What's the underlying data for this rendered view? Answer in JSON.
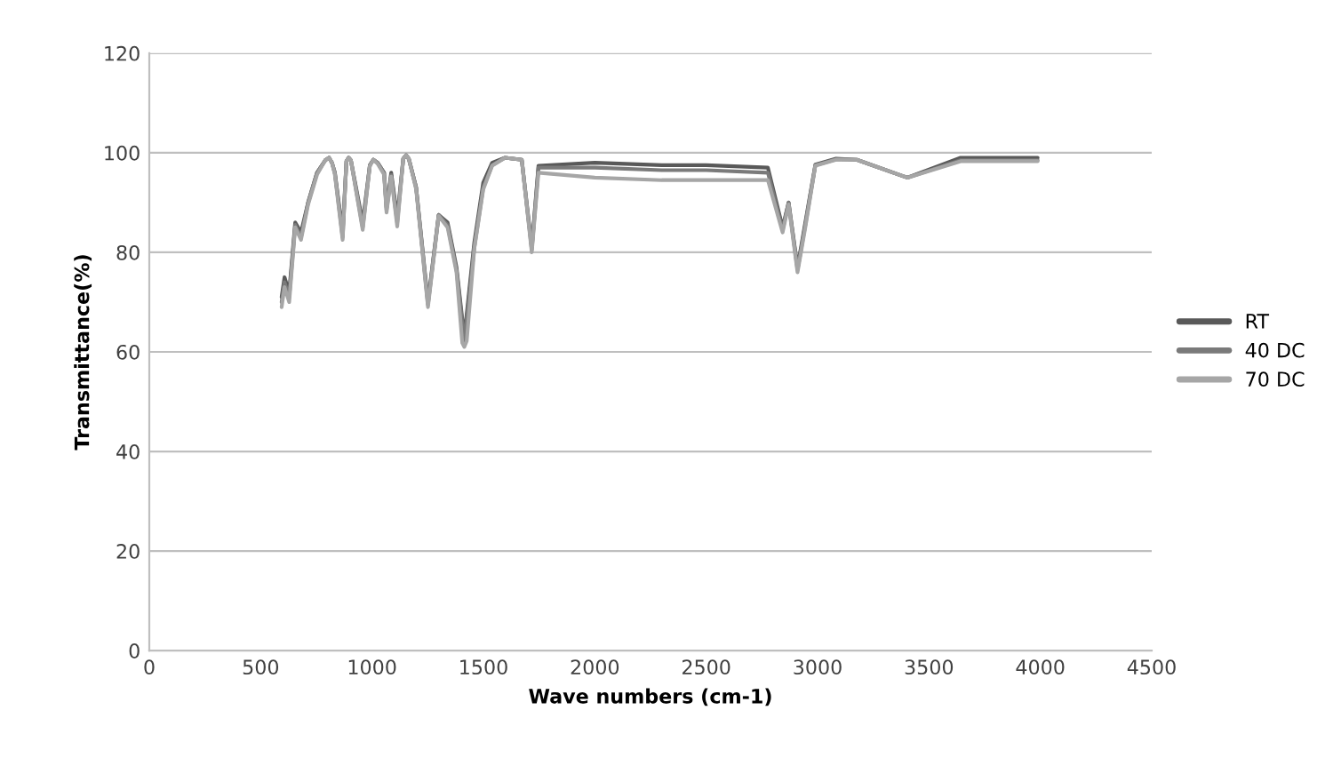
{
  "chart_data": {
    "type": "line",
    "xlabel": "Wave numbers (cm-1)",
    "ylabel": "Transmittance(%)",
    "xlim": [
      0,
      4500
    ],
    "xticks": [
      0,
      500,
      1000,
      1500,
      2000,
      2500,
      3000,
      3500,
      4000,
      4500
    ],
    "ylim": [
      0,
      120
    ],
    "yticks": [
      0,
      20,
      40,
      60,
      80,
      100,
      120
    ],
    "grid": "y",
    "legend": "right",
    "marker": "none",
    "line_style": "solid",
    "series": [
      {
        "name": "RT",
        "color": "#595959",
        "x": [
          594,
          607,
          628,
          655,
          681,
          713,
          753,
          790,
          807,
          820,
          833,
          868,
          885,
          895,
          905,
          958,
          990,
          1006,
          1025,
          1054,
          1065,
          1086,
          1113,
          1140,
          1153,
          1165,
          1198,
          1251,
          1299,
          1339,
          1379,
          1414,
          1459,
          1499,
          1539,
          1597,
          1672,
          1717,
          1747,
          2000,
          2300,
          2500,
          2777,
          2843,
          2870,
          2910,
          2945,
          2990,
          3083,
          3176,
          3403,
          3642,
          3988
        ],
        "values": [
          71,
          75,
          72,
          86,
          84,
          90,
          96,
          98.5,
          99,
          98,
          96,
          84,
          98.3,
          99,
          98.5,
          86,
          97.5,
          98.6,
          98,
          96,
          89,
          96,
          87,
          98.8,
          99.5,
          98.8,
          93,
          70,
          87.5,
          86,
          77,
          63,
          82,
          94,
          98,
          99,
          98.6,
          81,
          97.4,
          98,
          97.5,
          97.5,
          97,
          85,
          90,
          77,
          86,
          97.6,
          98.8,
          98.6,
          95,
          99,
          99
        ]
      },
      {
        "name": "40 DC",
        "color": "#7a7a7a",
        "x": [
          594,
          607,
          628,
          655,
          681,
          713,
          753,
          790,
          807,
          820,
          833,
          868,
          885,
          895,
          905,
          958,
          990,
          1006,
          1025,
          1054,
          1065,
          1086,
          1113,
          1140,
          1153,
          1165,
          1198,
          1251,
          1299,
          1339,
          1379,
          1414,
          1459,
          1499,
          1539,
          1597,
          1672,
          1717,
          1747,
          2000,
          2300,
          2500,
          2777,
          2843,
          2870,
          2910,
          2945,
          2990,
          3083,
          3176,
          3403,
          3642,
          3988
        ],
        "values": [
          70,
          74,
          71,
          85.5,
          83,
          90,
          96,
          98.5,
          99,
          98,
          96,
          83,
          98.3,
          99,
          98.5,
          85,
          97.5,
          98.6,
          98,
          96,
          88.5,
          95.5,
          86,
          98.8,
          99.5,
          98.8,
          93,
          69.5,
          87.5,
          85.5,
          76.5,
          62,
          81,
          93,
          97.5,
          99,
          98.6,
          80.5,
          97,
          97,
          96.5,
          96.5,
          96,
          84.5,
          90,
          76.5,
          85.5,
          97.5,
          98.7,
          98.6,
          95,
          98.5,
          98.5
        ]
      },
      {
        "name": "70 DC",
        "color": "#a6a6a6",
        "x": [
          594,
          607,
          628,
          655,
          681,
          713,
          753,
          790,
          807,
          820,
          833,
          868,
          885,
          895,
          905,
          958,
          990,
          1006,
          1025,
          1054,
          1065,
          1086,
          1113,
          1140,
          1153,
          1165,
          1198,
          1251,
          1299,
          1339,
          1379,
          1405,
          1414,
          1425,
          1459,
          1499,
          1539,
          1597,
          1672,
          1717,
          1747,
          2000,
          2300,
          2500,
          2777,
          2843,
          2870,
          2910,
          2945,
          2990,
          3083,
          3176,
          3403,
          3642,
          3988
        ],
        "values": [
          69,
          73,
          70,
          85,
          82.5,
          89.6,
          95.6,
          98.5,
          99,
          98,
          95.6,
          82.5,
          98.3,
          99,
          98.5,
          84.5,
          97.3,
          98.6,
          97.8,
          95.6,
          88,
          95.2,
          85.2,
          98.8,
          99.5,
          98.8,
          92.6,
          69,
          87.3,
          85,
          76,
          61.8,
          61,
          62.2,
          80.7,
          92.6,
          97.4,
          99,
          98.6,
          80,
          96,
          95,
          94.5,
          94.5,
          94.5,
          84,
          89.6,
          76,
          85,
          97.4,
          98.6,
          98.6,
          95,
          98.3,
          98.3
        ]
      }
    ]
  }
}
